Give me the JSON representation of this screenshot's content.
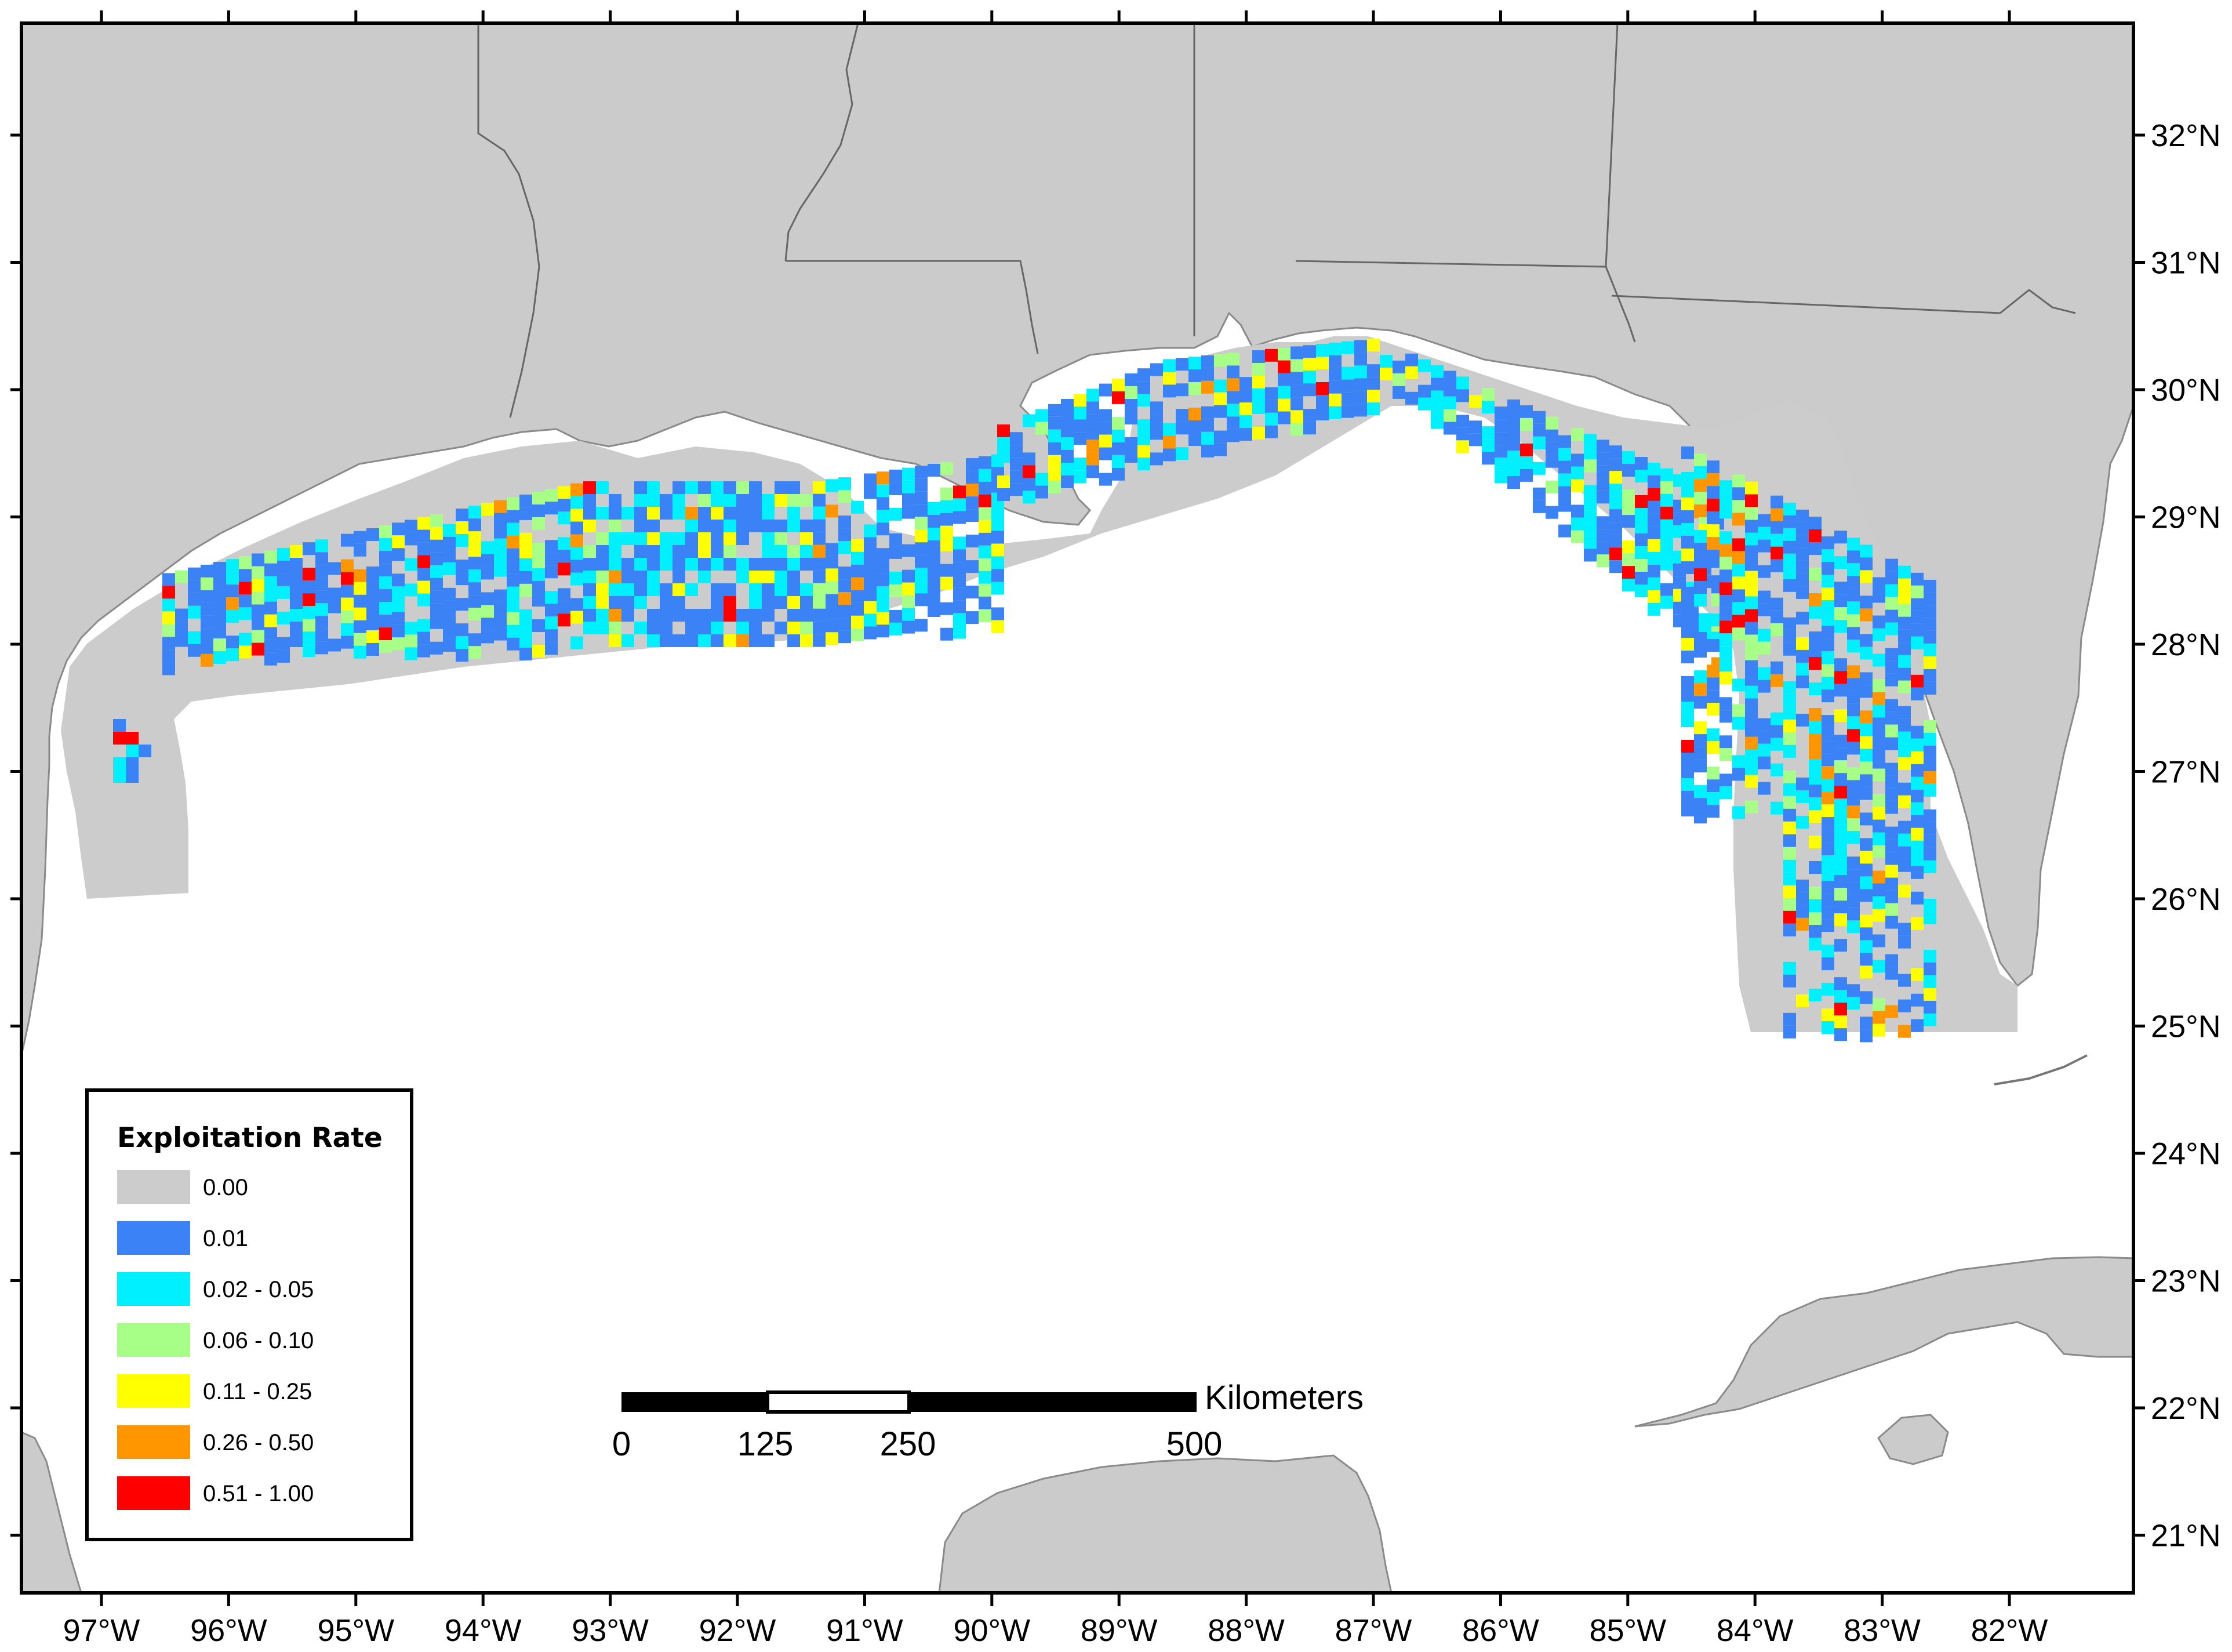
{
  "map": {
    "lon_labels": [
      "97°W",
      "96°W",
      "95°W",
      "94°W",
      "93°W",
      "92°W",
      "91°W",
      "90°W",
      "89°W",
      "88°W",
      "87°W",
      "86°W",
      "85°W",
      "84°W",
      "83°W",
      "82°W"
    ],
    "lat_labels": [
      "32°N",
      "31°N",
      "30°N",
      "29°N",
      "28°N",
      "27°N",
      "26°N",
      "25°N",
      "24°N",
      "23°N",
      "22°N",
      "21°N"
    ],
    "colors": {
      "land": "#cbcbcb",
      "water": "#ffffff",
      "border": "#555555"
    }
  },
  "legend": {
    "title": "Exploitation Rate",
    "classes": [
      {
        "label": "0.00",
        "color": "#cccccc"
      },
      {
        "label": "0.01",
        "color": "#3b82f6"
      },
      {
        "label": "0.02 - 0.05",
        "color": "#00f0ff"
      },
      {
        "label": "0.06 - 0.10",
        "color": "#a8ff88"
      },
      {
        "label": "0.11 - 0.25",
        "color": "#ffff00"
      },
      {
        "label": "0.26 - 0.50",
        "color": "#ff9600"
      },
      {
        "label": "0.51 - 1.00",
        "color": "#ff0000"
      }
    ]
  },
  "scale_bar": {
    "unit": "Kilometers",
    "ticks": [
      "0",
      "125",
      "250",
      "500"
    ]
  }
}
